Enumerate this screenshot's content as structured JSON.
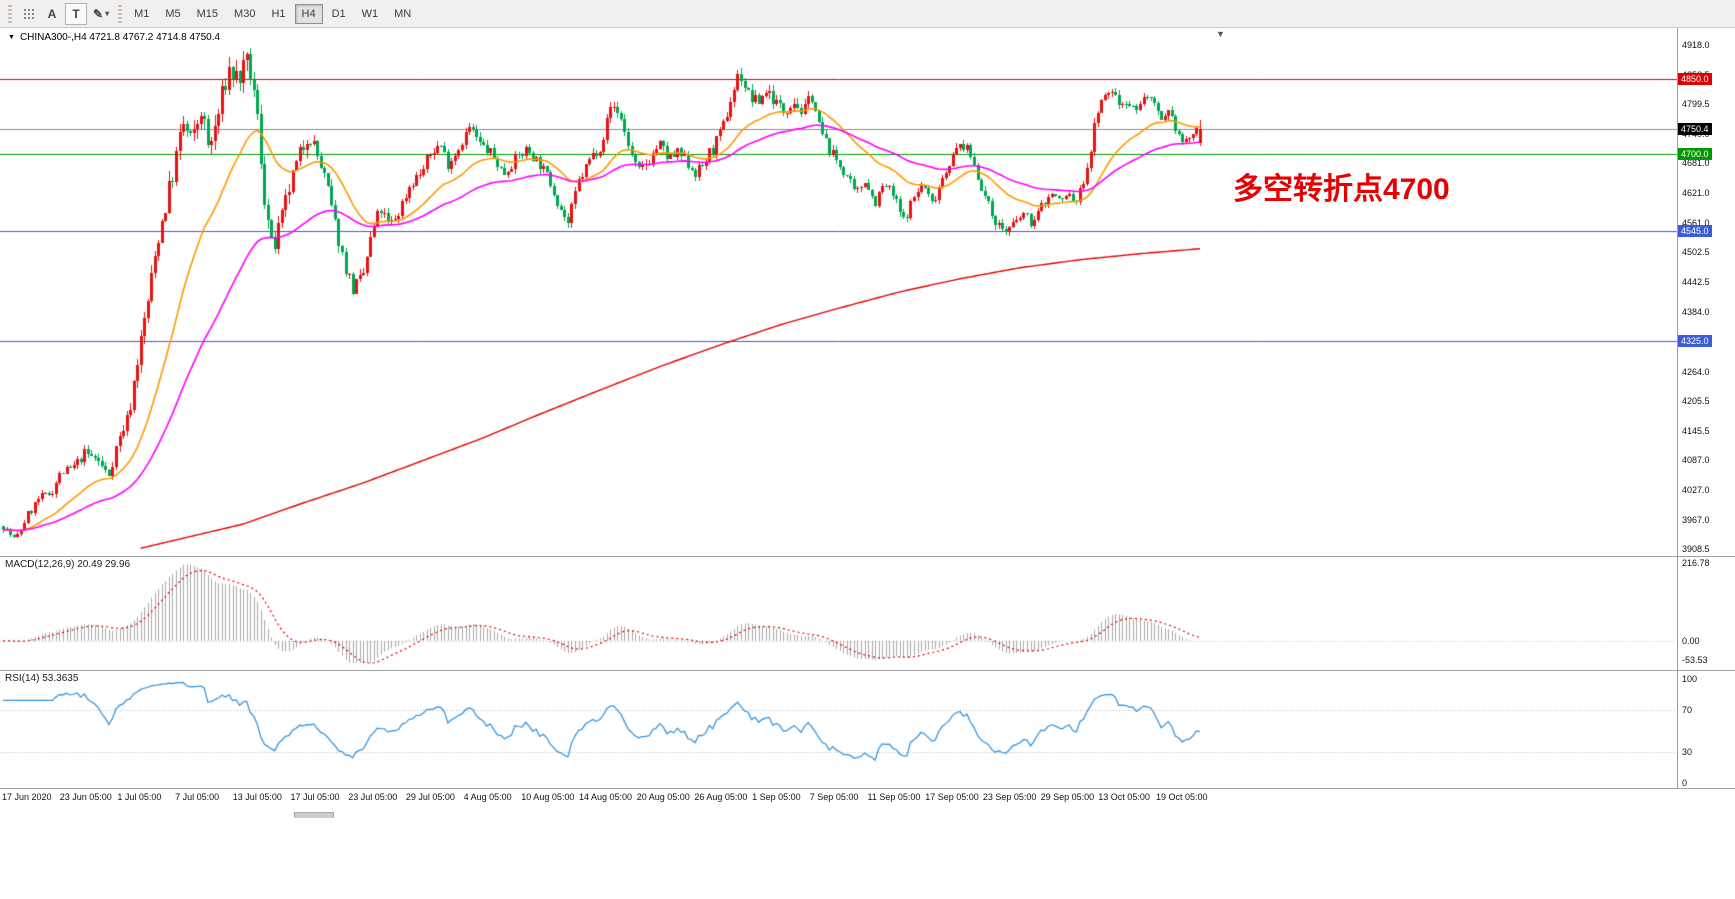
{
  "toolbar": {
    "cursor_label": "A",
    "text_label": "T",
    "timeframes": [
      "M1",
      "M5",
      "M15",
      "M30",
      "H1",
      "H4",
      "D1",
      "W1",
      "MN"
    ],
    "active_timeframe": "H4"
  },
  "chart": {
    "symbol_info": "CHINA300-,H4 4721.8 4767.2 4714.8 4750.4",
    "annotation": {
      "text": "多空转折点4700",
      "color": "#e60000"
    }
  },
  "indicators": {
    "macd_label": "MACD(12,26,9) 20.49 29.96",
    "rsi_label": "RSI(14) 53.3635"
  },
  "chart_data": {
    "type": "candlestick",
    "title": "CHINA300-,H4",
    "symbol": "CHINA300-",
    "timeframe": "H4",
    "last_ohlc": {
      "open": 4721.8,
      "high": 4767.2,
      "low": 4714.8,
      "close": 4750.4
    },
    "current_price": 4750.4,
    "current_price_label": "4750.4",
    "bars": 340,
    "up_color": "#e51313",
    "down_color": "#00a651",
    "y_range": [
      3908.5,
      4918.0
    ],
    "y_ticks": [
      "4918.0",
      "4858.5",
      "4799.5",
      "4740.0",
      "4681.0",
      "4621.0",
      "4561.0",
      "4502.5",
      "4442.5",
      "4384.0",
      "4324.5",
      "4264.0",
      "4205.5",
      "4145.5",
      "4087.0",
      "4027.0",
      "3967.0",
      "3908.5"
    ],
    "x_labels": [
      "17 Jun 2020",
      "23 Jun 05:00",
      "1 Jul 05:00",
      "7 Jul 05:00",
      "13 Jul 05:00",
      "17 Jul 05:00",
      "23 Jul 05:00",
      "29 Jul 05:00",
      "4 Aug 05:00",
      "10 Aug 05:00",
      "14 Aug 05:00",
      "20 Aug 05:00",
      "26 Aug 05:00",
      "1 Sep 05:00",
      "7 Sep 05:00",
      "11 Sep 05:00",
      "17 Sep 05:00",
      "23 Sep 05:00",
      "29 Sep 05:00",
      "13 Oct 05:00",
      "19 Oct 05:00"
    ],
    "levels": [
      {
        "price": 4850.0,
        "label": "4850.0",
        "color": "#dd0000"
      },
      {
        "price": 4700.0,
        "label": "4700.0",
        "color": "#009900"
      },
      {
        "price": 4545.0,
        "label": "4545.0",
        "color": "#3c5bd9"
      },
      {
        "price": 4325.0,
        "label": "4325.0",
        "color": "#3c5bd9"
      }
    ],
    "close_keypoints": [
      [
        0,
        3955
      ],
      [
        0.01,
        3925
      ],
      [
        0.02,
        3975
      ],
      [
        0.03,
        4010
      ],
      [
        0.04,
        4020
      ],
      [
        0.048,
        4060
      ],
      [
        0.058,
        4070
      ],
      [
        0.068,
        4100
      ],
      [
        0.078,
        4090
      ],
      [
        0.088,
        4055
      ],
      [
        0.096,
        4125
      ],
      [
        0.105,
        4180
      ],
      [
        0.113,
        4300
      ],
      [
        0.122,
        4420
      ],
      [
        0.13,
        4540
      ],
      [
        0.14,
        4640
      ],
      [
        0.15,
        4760
      ],
      [
        0.158,
        4720
      ],
      [
        0.165,
        4790
      ],
      [
        0.172,
        4705
      ],
      [
        0.18,
        4780
      ],
      [
        0.188,
        4870
      ],
      [
        0.196,
        4850
      ],
      [
        0.205,
        4880
      ],
      [
        0.212,
        4780
      ],
      [
        0.218,
        4620
      ],
      [
        0.225,
        4500
      ],
      [
        0.232,
        4560
      ],
      [
        0.24,
        4640
      ],
      [
        0.248,
        4700
      ],
      [
        0.255,
        4745
      ],
      [
        0.262,
        4700
      ],
      [
        0.27,
        4640
      ],
      [
        0.278,
        4550
      ],
      [
        0.285,
        4480
      ],
      [
        0.292,
        4430
      ],
      [
        0.3,
        4450
      ],
      [
        0.308,
        4540
      ],
      [
        0.315,
        4590
      ],
      [
        0.322,
        4555
      ],
      [
        0.33,
        4580
      ],
      [
        0.34,
        4640
      ],
      [
        0.35,
        4665
      ],
      [
        0.358,
        4705
      ],
      [
        0.365,
        4720
      ],
      [
        0.372,
        4680
      ],
      [
        0.38,
        4710
      ],
      [
        0.39,
        4755
      ],
      [
        0.398,
        4720
      ],
      [
        0.408,
        4700
      ],
      [
        0.418,
        4660
      ],
      [
        0.428,
        4690
      ],
      [
        0.438,
        4710
      ],
      [
        0.448,
        4680
      ],
      [
        0.458,
        4640
      ],
      [
        0.466,
        4590
      ],
      [
        0.472,
        4560
      ],
      [
        0.48,
        4640
      ],
      [
        0.49,
        4690
      ],
      [
        0.5,
        4720
      ],
      [
        0.508,
        4800
      ],
      [
        0.515,
        4780
      ],
      [
        0.522,
        4720
      ],
      [
        0.53,
        4660
      ],
      [
        0.54,
        4690
      ],
      [
        0.548,
        4720
      ],
      [
        0.556,
        4690
      ],
      [
        0.565,
        4700
      ],
      [
        0.572,
        4680
      ],
      [
        0.58,
        4660
      ],
      [
        0.59,
        4700
      ],
      [
        0.6,
        4740
      ],
      [
        0.608,
        4810
      ],
      [
        0.615,
        4865
      ],
      [
        0.622,
        4820
      ],
      [
        0.63,
        4800
      ],
      [
        0.638,
        4830
      ],
      [
        0.645,
        4805
      ],
      [
        0.652,
        4785
      ],
      [
        0.66,
        4810
      ],
      [
        0.668,
        4780
      ],
      [
        0.675,
        4820
      ],
      [
        0.682,
        4750
      ],
      [
        0.69,
        4710
      ],
      [
        0.698,
        4680
      ],
      [
        0.706,
        4650
      ],
      [
        0.712,
        4615
      ],
      [
        0.72,
        4650
      ],
      [
        0.728,
        4600
      ],
      [
        0.736,
        4640
      ],
      [
        0.744,
        4615
      ],
      [
        0.752,
        4565
      ],
      [
        0.76,
        4610
      ],
      [
        0.768,
        4640
      ],
      [
        0.776,
        4600
      ],
      [
        0.784,
        4650
      ],
      [
        0.792,
        4690
      ],
      [
        0.8,
        4720
      ],
      [
        0.808,
        4700
      ],
      [
        0.815,
        4650
      ],
      [
        0.822,
        4600
      ],
      [
        0.83,
        4560
      ],
      [
        0.838,
        4545
      ],
      [
        0.845,
        4560
      ],
      [
        0.852,
        4580
      ],
      [
        0.86,
        4560
      ],
      [
        0.868,
        4600
      ],
      [
        0.876,
        4620
      ],
      [
        0.884,
        4605
      ],
      [
        0.89,
        4620
      ],
      [
        0.896,
        4600
      ],
      [
        0.902,
        4640
      ],
      [
        0.908,
        4700
      ],
      [
        0.914,
        4790
      ],
      [
        0.92,
        4810
      ],
      [
        0.926,
        4830
      ],
      [
        0.932,
        4800
      ],
      [
        0.938,
        4810
      ],
      [
        0.944,
        4790
      ],
      [
        0.95,
        4800
      ],
      [
        0.956,
        4820
      ],
      [
        0.962,
        4790
      ],
      [
        0.968,
        4760
      ],
      [
        0.974,
        4780
      ],
      [
        0.98,
        4750
      ],
      [
        0.986,
        4720
      ],
      [
        0.992,
        4735
      ],
      [
        1,
        4750.4
      ]
    ],
    "volatility_keypoints": [
      [
        0,
        10
      ],
      [
        0.05,
        12
      ],
      [
        0.1,
        16
      ],
      [
        0.13,
        30
      ],
      [
        0.2,
        34
      ],
      [
        0.23,
        26
      ],
      [
        0.3,
        18
      ],
      [
        0.4,
        14
      ],
      [
        0.5,
        15
      ],
      [
        0.62,
        18
      ],
      [
        0.7,
        14
      ],
      [
        0.8,
        13
      ],
      [
        0.88,
        11
      ],
      [
        0.93,
        15
      ],
      [
        1,
        10
      ]
    ],
    "moving_averages": [
      {
        "name": "ma-fast",
        "color": "#ff9900",
        "period": 25
      },
      {
        "name": "ma-mid",
        "color": "#ff00ff",
        "period": 60
      },
      {
        "name": "ma-slow",
        "color": "#e00000",
        "keypoints": [
          [
            0.115,
            3910
          ],
          [
            0.2,
            3958
          ],
          [
            0.25,
            4000
          ],
          [
            0.3,
            4040
          ],
          [
            0.35,
            4085
          ],
          [
            0.4,
            4130
          ],
          [
            0.45,
            4180
          ],
          [
            0.5,
            4228
          ],
          [
            0.55,
            4275
          ],
          [
            0.6,
            4318
          ],
          [
            0.65,
            4358
          ],
          [
            0.7,
            4392
          ],
          [
            0.75,
            4424
          ],
          [
            0.8,
            4450
          ],
          [
            0.85,
            4472
          ],
          [
            0.9,
            4488
          ],
          [
            0.95,
            4500
          ],
          [
            1,
            4510
          ]
        ]
      }
    ],
    "indicators": {
      "macd": {
        "label": "MACD(12,26,9)",
        "values_text": "20.49 29.96",
        "fast": 12,
        "slow": 26,
        "signal": 9,
        "axis_max": 216.78,
        "axis_min": -53.53,
        "ticks": [
          "216.78",
          "0.00",
          "-53.53"
        ],
        "histogram_color": "#a9a9a9",
        "signal_color": "#dd0000"
      },
      "rsi": {
        "label": "RSI(14)",
        "value_text": "53.3635",
        "period": 14,
        "ticks": [
          "100",
          "70",
          "30",
          "0"
        ],
        "levels": [
          70,
          30
        ],
        "color": "#2a8fdd"
      }
    }
  }
}
